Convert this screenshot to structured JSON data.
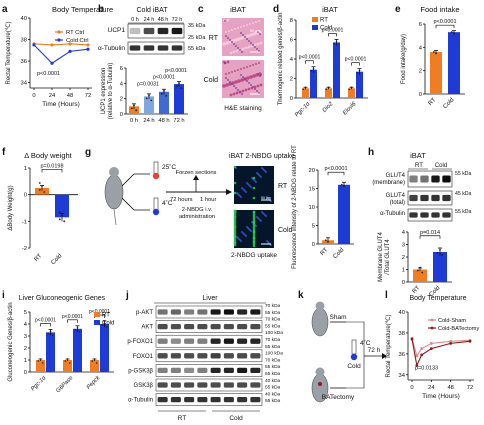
{
  "panels": {
    "a": {
      "letter": "a",
      "title": "Body Temperature",
      "ylabel": "Rectal Temperature(℃)",
      "xlabel": "Time (Hours)",
      "xticks": [
        "0",
        "24",
        "48",
        "72"
      ],
      "yticks": [
        "34",
        "36",
        "38",
        "40"
      ],
      "legend": [
        "RT Ctrl",
        "Cold Ctrl"
      ],
      "pval": "p<0.0001"
    },
    "b": {
      "letter": "b",
      "title": "Cold iBAT",
      "blot_lanes": [
        "0 h",
        "24 h",
        "48 h",
        "72 h"
      ],
      "blot_rows": [
        "UCP1",
        "α-Tubulin"
      ],
      "kda": [
        "35 kDa",
        "25 kDa",
        "55 kDa"
      ],
      "ylabel": "UCP1 expression\n(relative to α-Tubulin)",
      "yticks": [
        "0",
        "2",
        "4",
        "6"
      ],
      "pvals": [
        "p=0.0031",
        "p<0.0001",
        "p<0.0001"
      ]
    },
    "c": {
      "letter": "c",
      "title": "iBAT",
      "rows": [
        "RT",
        "Cold"
      ],
      "caption": "H&E staining",
      "scale": "50 μm"
    },
    "d": {
      "letter": "d",
      "title": "iBAT",
      "ylabel": "Thermogenic related genes/β-actin",
      "legend": [
        "RT",
        "Cold"
      ],
      "yticks": [
        "0",
        "2",
        "4",
        "6",
        "8"
      ],
      "pvals": [
        "p<0.0001",
        "p<0.0001",
        "p<0.0001"
      ]
    },
    "e": {
      "letter": "e",
      "title": "Food intake",
      "ylabel": "Food intake(g/day)",
      "yticks": [
        "0",
        "2",
        "4",
        "6"
      ],
      "groups": [
        "RT",
        "Cold"
      ],
      "pval": "p<0.0001"
    },
    "f": {
      "letter": "f",
      "title": "Δ Body weight",
      "ylabel": "ΔBody Weight(g)",
      "yticks": [
        "-2",
        "-1",
        "0",
        "1"
      ],
      "groups": [
        "RT",
        "Cold"
      ],
      "pval": "p=0.0198"
    },
    "g": {
      "letter": "g",
      "title": "iBAT 2-NBDG uptake",
      "temps": [
        "25˚C",
        "4˚C"
      ],
      "sections": "Forzen sections",
      "time1": "72 hours",
      "time2": "1 hour",
      "admin": "2-NBDG i.v.\nadministration",
      "rows": [
        "RT",
        "Cold"
      ],
      "caption": "2-NBDG uptake",
      "scale": "50 μm",
      "ylabel": "Fluorescence intensity of 2-NBDG relate to RT",
      "yticks": [
        "0",
        "5",
        "10",
        "15",
        "20"
      ],
      "groups": [
        "RT",
        "Cold"
      ],
      "pval": "p<0.0001"
    },
    "h": {
      "letter": "h",
      "title": "iBAT",
      "lanes": [
        "RT",
        "Cold"
      ],
      "blot_rows": [
        "GLUT4\n(membrane)",
        "GLUT4\n(total)",
        "α-Tubulin"
      ],
      "kda": [
        "55 kDa",
        "45 kDa",
        "55 kDa"
      ],
      "ylabel": "Membrane GLUT4\n/Total GLUT4",
      "yticks": [
        "0",
        "1",
        "2",
        "3",
        "4"
      ],
      "groups": [
        "RT",
        "Cold"
      ],
      "pval": "p=0.014"
    },
    "i": {
      "letter": "i",
      "title": "Liver Gluconeogenic Genes",
      "ylabel": "Gluconeogenic Genes/β-actin",
      "legend": [
        "RT",
        "Cold"
      ],
      "yticks": [
        "0",
        "1",
        "2",
        "3",
        "4",
        "5"
      ],
      "pvals": [
        "p<0.0001",
        "p<0.0001",
        "p<0.0001"
      ]
    },
    "j": {
      "letter": "j",
      "title": "Liver",
      "rows": [
        "p-AKT",
        "AKT",
        "p-FOXO1",
        "FOXO1",
        "p-GSK3β",
        "GSK3β",
        "α-Tubulin"
      ],
      "kda": [
        "70 kDa",
        "55 kDa",
        "70 kDa",
        "55 kDa",
        "100 kDa",
        "70 kDa",
        "55 kDa",
        "100 kDa",
        "70 kDa",
        "55 kDa",
        "55 kDa",
        "40 kDa",
        "55 kDa",
        "40 kDa",
        "55 kDa"
      ],
      "groups": [
        "RT",
        "Cold"
      ]
    },
    "k": {
      "letter": "k",
      "arms": [
        "Sham",
        "BATectomy"
      ],
      "temp": "4˚C",
      "temp_label": "Cold",
      "time": "72 h"
    },
    "l": {
      "letter": "l",
      "title": "Body Temperature",
      "ylabel": "Rectal Temperature(℃)",
      "xlabel": "Time (Hours)",
      "xticks": [
        "0",
        "24",
        "48",
        "72"
      ],
      "yticks": [
        "34",
        "36",
        "38",
        "40"
      ],
      "legend": [
        "Cold-Sham",
        "Cold-BATectomy"
      ],
      "pval": "p=0.0133"
    }
  },
  "colors": {
    "rt": "#ef7d23",
    "cold": "#1f3bd6",
    "sham": "#d98a8a",
    "batect": "#8b1a1a",
    "he": "#e6a2c2",
    "nuc": "#7a3b8f",
    "fluo": "#0a5a18"
  },
  "chart_data": [
    {
      "panel": "a",
      "type": "line",
      "x": [
        0,
        24,
        48,
        72
      ],
      "series": [
        {
          "name": "RT Ctrl",
          "values": [
            37.6,
            37.5,
            37.6,
            37.5
          ]
        },
        {
          "name": "Cold Ctrl",
          "values": [
            37.5,
            35.8,
            36.9,
            37.1
          ]
        }
      ],
      "xlabel": "Time (Hours)",
      "ylabel": "Rectal Temperature(℃)",
      "ylim": [
        33.5,
        40
      ]
    },
    {
      "panel": "b",
      "type": "bar",
      "categories": [
        "0 h",
        "24 h",
        "48 h",
        "72 h"
      ],
      "values": [
        1.0,
        2.3,
        2.9,
        3.9
      ],
      "ylim": [
        0,
        6
      ]
    },
    {
      "panel": "d",
      "type": "bar",
      "categories": [
        "Pgc-1α",
        "Dio2",
        "Elovl6"
      ],
      "series": [
        {
          "name": "RT",
          "values": [
            1.0,
            1.0,
            1.0
          ]
        },
        {
          "name": "Cold",
          "values": [
            2.9,
            5.7,
            2.7
          ]
        }
      ],
      "ylim": [
        0,
        8
      ]
    },
    {
      "panel": "e",
      "type": "bar",
      "categories": [
        "RT",
        "Cold"
      ],
      "values": [
        3.6,
        5.3
      ],
      "ylim": [
        0,
        6
      ]
    },
    {
      "panel": "f",
      "type": "bar",
      "categories": [
        "RT",
        "Cold"
      ],
      "values": [
        0.25,
        -0.85
      ],
      "ylim": [
        -2,
        1
      ]
    },
    {
      "panel": "g",
      "type": "bar",
      "categories": [
        "RT",
        "Cold"
      ],
      "values": [
        1.0,
        16.0
      ],
      "ylim": [
        0,
        20
      ]
    },
    {
      "panel": "h",
      "type": "bar",
      "categories": [
        "RT",
        "Cold"
      ],
      "values": [
        1.0,
        2.4
      ],
      "ylim": [
        0,
        4
      ]
    },
    {
      "panel": "i",
      "type": "bar",
      "categories": [
        "Pgc-1α",
        "G6Pase",
        "Pepck"
      ],
      "series": [
        {
          "name": "RT",
          "values": [
            1.0,
            1.0,
            1.0
          ]
        },
        {
          "name": "Cold",
          "values": [
            3.3,
            3.6,
            4.0
          ]
        }
      ],
      "ylim": [
        0,
        5
      ]
    },
    {
      "panel": "l",
      "type": "line",
      "x": [
        0,
        6,
        12,
        24,
        48,
        72
      ],
      "series": [
        {
          "name": "Cold-Sham",
          "values": [
            37.5,
            35.8,
            36.5,
            37.0,
            37.2,
            37.3
          ]
        },
        {
          "name": "Cold-BATectomy",
          "values": [
            37.4,
            34.9,
            35.9,
            36.5,
            37.0,
            37.2
          ]
        }
      ],
      "xlabel": "Time (Hours)",
      "ylabel": "Rectal Temperature(℃)",
      "ylim": [
        33.5,
        40
      ]
    }
  ]
}
